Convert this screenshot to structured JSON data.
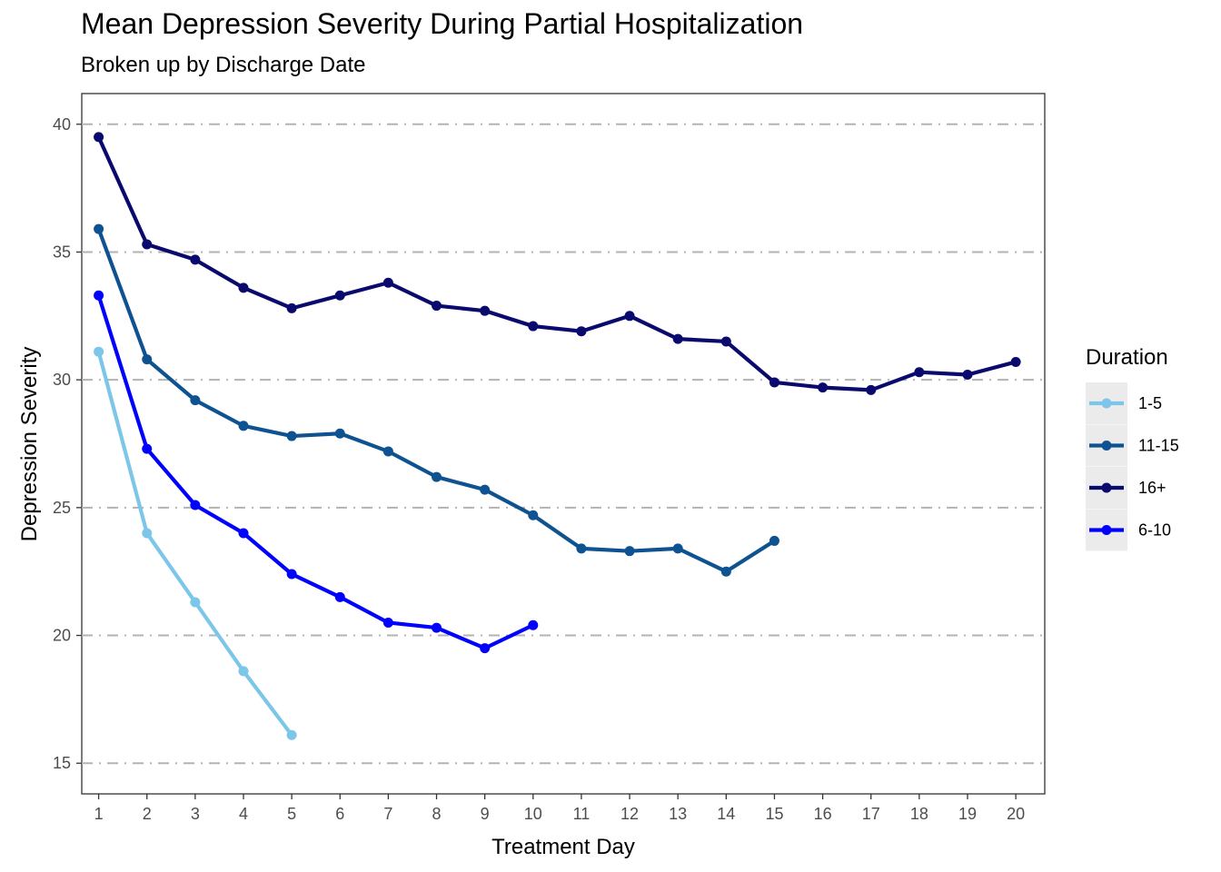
{
  "chart_data": {
    "type": "line",
    "title": "Mean Depression Severity During Partial Hospitalization",
    "subtitle": "Broken up by Discharge Date",
    "xlabel": "Treatment Day",
    "ylabel": "Depression Severity",
    "xlim": [
      0.65,
      20.6
    ],
    "ylim": [
      13.8,
      41.2
    ],
    "x_ticks": [
      1,
      2,
      3,
      4,
      5,
      6,
      7,
      8,
      9,
      10,
      11,
      12,
      13,
      14,
      15,
      16,
      17,
      18,
      19,
      20
    ],
    "y_ticks": [
      15,
      20,
      25,
      30,
      35,
      40
    ],
    "grid": "horizontal dashed",
    "legend": {
      "title": "Duration",
      "position": "right",
      "entries": [
        "1-5",
        "11-15",
        "16+",
        "6-10"
      ]
    },
    "series": [
      {
        "name": "1-5",
        "color": "#7cc6ea",
        "x": [
          1,
          2,
          3,
          4,
          5
        ],
        "values": [
          31.1,
          24.0,
          21.3,
          18.6,
          16.1
        ]
      },
      {
        "name": "11-15",
        "color": "#0e5291",
        "x": [
          1,
          2,
          3,
          4,
          5,
          6,
          7,
          8,
          9,
          10,
          11,
          12,
          13,
          14,
          15
        ],
        "values": [
          35.9,
          30.8,
          29.2,
          28.2,
          27.8,
          27.9,
          27.2,
          26.2,
          25.7,
          24.7,
          23.4,
          23.3,
          23.4,
          22.5,
          23.7
        ]
      },
      {
        "name": "16+",
        "color": "#0a0a6e",
        "x": [
          1,
          2,
          3,
          4,
          5,
          6,
          7,
          8,
          9,
          10,
          11,
          12,
          13,
          14,
          15,
          16,
          17,
          18,
          19,
          20
        ],
        "values": [
          39.5,
          35.3,
          34.7,
          33.6,
          32.8,
          33.3,
          33.8,
          32.9,
          32.7,
          32.1,
          31.9,
          32.5,
          31.6,
          31.5,
          29.9,
          29.7,
          29.6,
          30.3,
          30.2,
          30.7
        ]
      },
      {
        "name": "6-10",
        "color": "#0000ff",
        "x": [
          1,
          2,
          3,
          4,
          5,
          6,
          7,
          8,
          9,
          10
        ],
        "values": [
          33.3,
          27.3,
          25.1,
          24.0,
          22.4,
          21.5,
          20.5,
          20.3,
          19.5,
          20.4
        ]
      }
    ]
  }
}
